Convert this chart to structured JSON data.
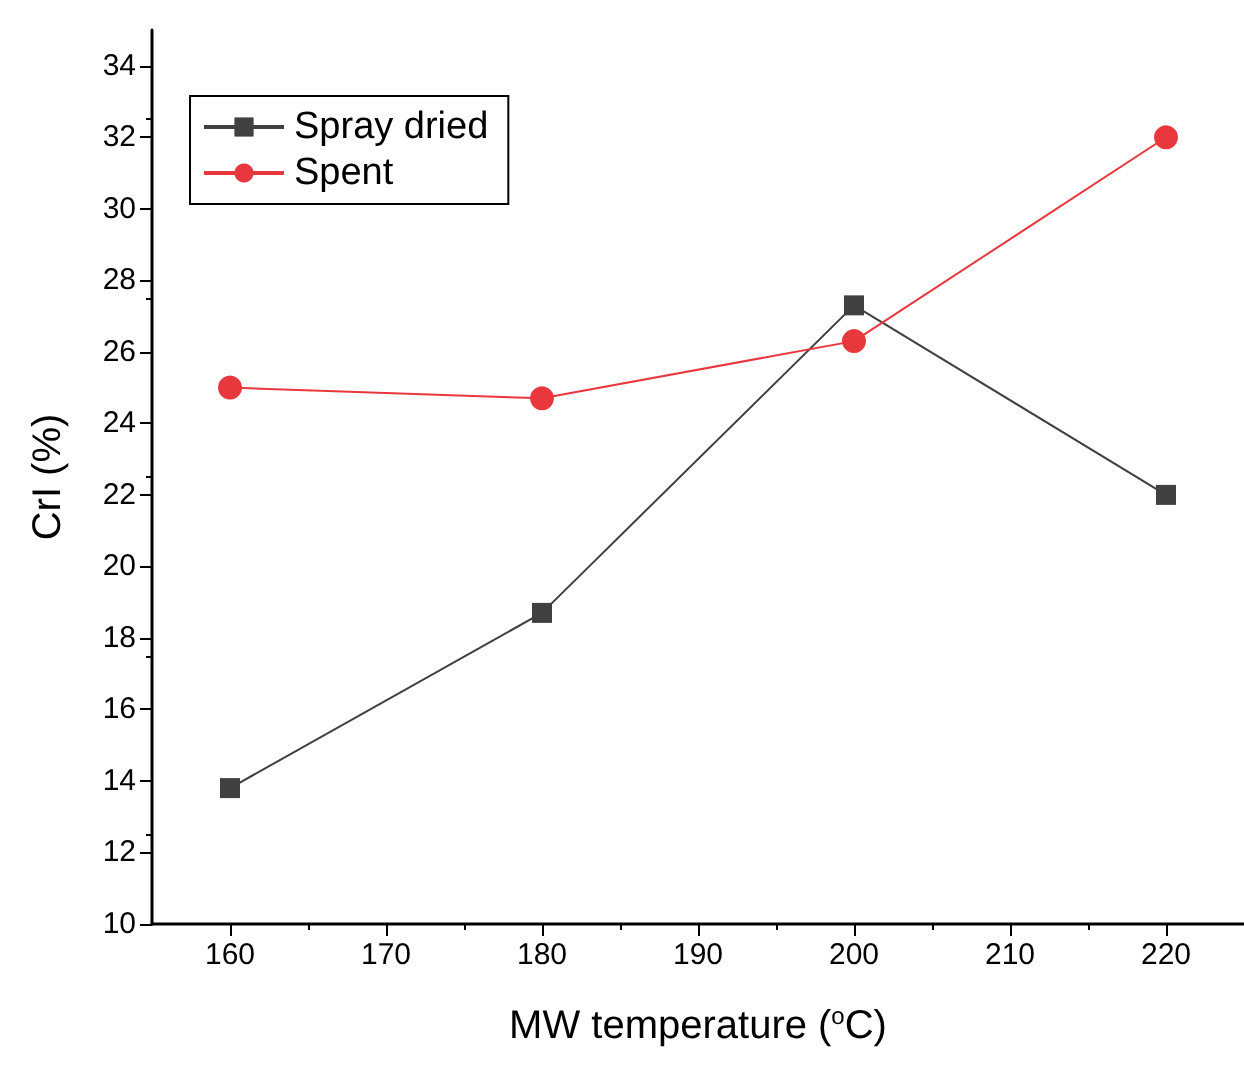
{
  "chart_data": {
    "type": "line",
    "xlabel": "MW temperature ($^{o}$C)",
    "ylabel": "CrI (%)",
    "x": [
      160,
      180,
      200,
      220
    ],
    "series": [
      {
        "name": "Spray dried",
        "color": "#404040",
        "marker": "square",
        "values": [
          13.8,
          18.7,
          27.3,
          22.0
        ]
      },
      {
        "name": "Spent",
        "color": "#e8383d",
        "marker": "circle",
        "values": [
          25.0,
          24.7,
          26.3,
          32.0
        ]
      }
    ],
    "xlim": [
      155,
      225
    ],
    "xticks": [
      160,
      170,
      180,
      190,
      200,
      210,
      220
    ],
    "ylim": [
      10,
      35
    ],
    "yticks": [
      10,
      12,
      14,
      16,
      18,
      20,
      22,
      24,
      26,
      28,
      30,
      32,
      34
    ],
    "grid": false,
    "legend": "top left",
    "line_style": "solid"
  }
}
